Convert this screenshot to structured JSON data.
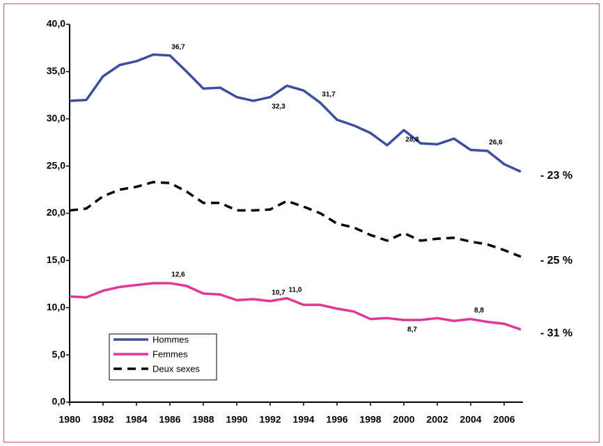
{
  "chart_data": {
    "type": "line",
    "x": [
      1980,
      1981,
      1982,
      1983,
      1984,
      1985,
      1986,
      1987,
      1988,
      1989,
      1990,
      1991,
      1992,
      1993,
      1994,
      1995,
      1996,
      1997,
      1998,
      1999,
      2000,
      2001,
      2002,
      2003,
      2004,
      2005,
      2006,
      2007
    ],
    "xlim": [
      1980,
      2007
    ],
    "xticks": [
      1980,
      1982,
      1984,
      1986,
      1988,
      1990,
      1992,
      1994,
      1996,
      1998,
      2000,
      2002,
      2004,
      2006
    ],
    "ylim": [
      0,
      40
    ],
    "yticks": [
      {
        "value": 0,
        "label": "0,0"
      },
      {
        "value": 5,
        "label": "5,0"
      },
      {
        "value": 10,
        "label": "10,0"
      },
      {
        "value": 15,
        "label": "15,0"
      },
      {
        "value": 20,
        "label": "20,0"
      },
      {
        "value": 25,
        "label": "25,0"
      },
      {
        "value": 30,
        "label": "30,0"
      },
      {
        "value": 35,
        "label": "35,0"
      },
      {
        "value": 40,
        "label": "40,0"
      }
    ],
    "series": [
      {
        "name": "Hommes",
        "color": "#3b4da0",
        "dash": false,
        "end_label": "- 23 %",
        "values": [
          31.9,
          32.0,
          34.5,
          35.7,
          36.1,
          36.8,
          36.7,
          35.0,
          33.2,
          33.3,
          32.3,
          31.9,
          32.3,
          33.5,
          33.0,
          31.7,
          29.9,
          29.3,
          28.5,
          27.2,
          28.8,
          27.4,
          27.3,
          27.9,
          26.7,
          26.6,
          25.2,
          24.4
        ],
        "value_labels": [
          null,
          null,
          null,
          null,
          null,
          null,
          "36,7",
          null,
          null,
          null,
          null,
          null,
          "32,3",
          null,
          null,
          "31,7",
          null,
          null,
          null,
          null,
          "28,8",
          null,
          null,
          null,
          null,
          "26,6",
          null,
          null
        ]
      },
      {
        "name": "Femmes",
        "color": "#e0389a",
        "dash": false,
        "end_label": "- 31 %",
        "values": [
          11.2,
          11.1,
          11.8,
          12.2,
          12.4,
          12.6,
          12.6,
          12.3,
          11.5,
          11.4,
          10.8,
          10.9,
          10.7,
          11.0,
          10.3,
          10.3,
          9.9,
          9.6,
          8.8,
          8.9,
          8.7,
          8.7,
          8.9,
          8.6,
          8.8,
          8.5,
          8.3,
          7.7
        ],
        "value_labels": [
          null,
          null,
          null,
          null,
          null,
          null,
          "12,6",
          null,
          null,
          null,
          null,
          null,
          "10,7",
          "11,0",
          null,
          null,
          null,
          null,
          null,
          null,
          "8,7",
          null,
          null,
          null,
          "8,8",
          null,
          null,
          null
        ]
      },
      {
        "name": "Deux sexes",
        "color": "#000000",
        "dash": true,
        "end_label": "- 25 %",
        "values": [
          20.3,
          20.5,
          21.8,
          22.5,
          22.8,
          23.3,
          23.2,
          22.3,
          21.1,
          21.1,
          20.3,
          20.3,
          20.4,
          21.3,
          20.7,
          20.0,
          18.9,
          18.5,
          17.7,
          17.1,
          17.9,
          17.1,
          17.3,
          17.4,
          17.0,
          16.7,
          16.1,
          15.4
        ]
      }
    ]
  }
}
